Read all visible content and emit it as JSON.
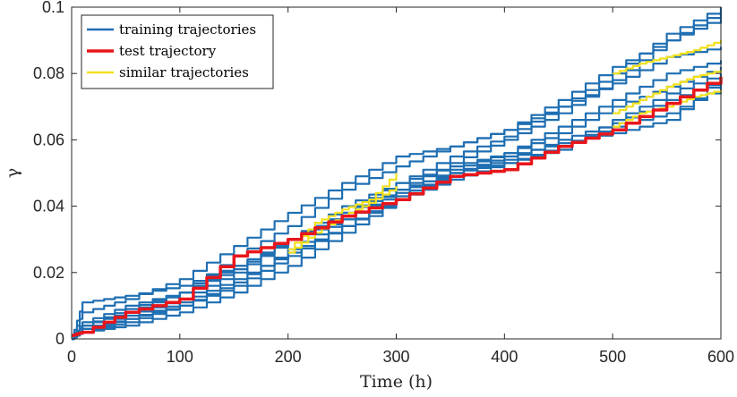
{
  "chart_data": {
    "type": "line",
    "xlabel": "Time (h)",
    "ylabel": "γ",
    "xlim": [
      0,
      600
    ],
    "ylim": [
      0,
      0.1
    ],
    "xticks": [
      0,
      100,
      200,
      300,
      400,
      500,
      600
    ],
    "xtick_labels": [
      "0",
      "100",
      "200",
      "300",
      "400",
      "500",
      "600"
    ],
    "yticks": [
      0,
      0.02,
      0.04,
      0.06,
      0.08,
      0.1
    ],
    "ytick_labels": [
      "0",
      "0.02",
      "0.04",
      "0.06",
      "0.08",
      "0.1"
    ],
    "grid": false,
    "legend_position": "top-left",
    "colors": {
      "training": "#1f6fb2",
      "test": "#e8161b",
      "similar": "#f2e01d"
    },
    "legend": [
      {
        "label": "training trajectories",
        "color": "#1f6fb2",
        "key": "training"
      },
      {
        "label": "test trajectory",
        "color": "#e8161b",
        "key": "test"
      },
      {
        "label": "similar trajectories",
        "color": "#f2e01d",
        "key": "similar"
      }
    ],
    "series": [
      {
        "group": "training",
        "x": [
          0,
          10,
          50,
          100,
          150,
          200,
          250,
          300,
          350,
          400,
          450,
          500,
          550,
          600
        ],
        "y": [
          0,
          0.011,
          0.013,
          0.016,
          0.022,
          0.03,
          0.038,
          0.047,
          0.055,
          0.061,
          0.07,
          0.08,
          0.092,
          0.1
        ]
      },
      {
        "group": "training",
        "x": [
          0,
          10,
          50,
          100,
          150,
          200,
          250,
          300,
          350,
          400,
          450,
          500,
          550,
          600
        ],
        "y": [
          0,
          0.005,
          0.01,
          0.014,
          0.022,
          0.03,
          0.036,
          0.045,
          0.053,
          0.06,
          0.068,
          0.078,
          0.09,
          0.099
        ]
      },
      {
        "group": "training",
        "x": [
          0,
          10,
          50,
          100,
          150,
          200,
          250,
          300,
          350,
          400,
          450,
          500,
          550,
          600
        ],
        "y": [
          0,
          0.008,
          0.012,
          0.018,
          0.028,
          0.038,
          0.047,
          0.055,
          0.058,
          0.063,
          0.072,
          0.082,
          0.09,
          0.097
        ]
      },
      {
        "group": "training",
        "x": [
          0,
          10,
          50,
          100,
          150,
          200,
          250,
          300,
          350,
          400,
          450,
          500,
          550,
          600
        ],
        "y": [
          0,
          0.004,
          0.009,
          0.014,
          0.025,
          0.034,
          0.045,
          0.052,
          0.058,
          0.063,
          0.07,
          0.077,
          0.085,
          0.088
        ]
      },
      {
        "group": "training",
        "x": [
          0,
          10,
          50,
          100,
          150,
          200,
          250,
          300,
          350,
          400,
          450,
          500,
          550,
          600
        ],
        "y": [
          0,
          0.003,
          0.007,
          0.012,
          0.02,
          0.03,
          0.04,
          0.047,
          0.052,
          0.056,
          0.064,
          0.072,
          0.08,
          0.084
        ]
      },
      {
        "group": "training",
        "x": [
          0,
          10,
          50,
          100,
          150,
          200,
          250,
          300,
          350,
          400,
          450,
          500,
          550,
          600
        ],
        "y": [
          0,
          0.002,
          0.006,
          0.01,
          0.016,
          0.025,
          0.034,
          0.043,
          0.05,
          0.055,
          0.059,
          0.062,
          0.066,
          0.079
        ]
      },
      {
        "group": "training",
        "x": [
          0,
          10,
          50,
          100,
          150,
          200,
          250,
          300,
          350,
          400,
          450,
          500,
          550,
          600
        ],
        "y": [
          0,
          0.002,
          0.004,
          0.008,
          0.014,
          0.022,
          0.032,
          0.042,
          0.05,
          0.053,
          0.057,
          0.066,
          0.074,
          0.08
        ]
      },
      {
        "group": "training",
        "x": [
          0,
          10,
          50,
          100,
          150,
          200,
          250,
          300,
          350,
          400,
          450,
          500,
          550,
          600
        ],
        "y": [
          0,
          0.004,
          0.008,
          0.014,
          0.021,
          0.03,
          0.038,
          0.045,
          0.05,
          0.054,
          0.06,
          0.065,
          0.072,
          0.078
        ]
      },
      {
        "group": "training",
        "x": [
          0,
          10,
          50,
          100,
          150,
          200,
          250,
          300,
          350,
          400,
          450,
          500,
          550,
          600
        ],
        "y": [
          0,
          0.003,
          0.006,
          0.011,
          0.018,
          0.026,
          0.034,
          0.042,
          0.048,
          0.053,
          0.058,
          0.064,
          0.068,
          0.076
        ]
      },
      {
        "group": "training",
        "x": [
          0,
          10,
          50,
          100,
          150,
          200,
          250,
          300,
          350,
          400,
          450,
          500,
          550,
          600
        ],
        "y": [
          0,
          0.002,
          0.005,
          0.01,
          0.017,
          0.027,
          0.036,
          0.044,
          0.051,
          0.056,
          0.062,
          0.07,
          0.076,
          0.082
        ]
      },
      {
        "group": "test",
        "x": [
          0,
          10,
          50,
          100,
          150,
          200,
          250,
          300,
          350,
          400,
          450,
          500,
          550,
          600
        ],
        "y": [
          0.001,
          0.002,
          0.008,
          0.012,
          0.025,
          0.03,
          0.037,
          0.042,
          0.049,
          0.051,
          0.058,
          0.063,
          0.071,
          0.079
        ]
      },
      {
        "group": "similar",
        "x": [
          200,
          225,
          250,
          275,
          300
        ],
        "y": [
          0.027,
          0.035,
          0.039,
          0.042,
          0.05
        ]
      },
      {
        "group": "similar",
        "x": [
          200,
          225,
          250,
          275,
          300
        ],
        "y": [
          0.026,
          0.032,
          0.037,
          0.041,
          0.046
        ]
      },
      {
        "group": "similar",
        "x": [
          500,
          525,
          550,
          575,
          600
        ],
        "y": [
          0.068,
          0.072,
          0.076,
          0.079,
          0.081
        ]
      },
      {
        "group": "similar",
        "x": [
          500,
          525,
          550,
          575,
          600
        ],
        "y": [
          0.08,
          0.083,
          0.085,
          0.087,
          0.09
        ]
      },
      {
        "group": "similar",
        "x": [
          500,
          525,
          550,
          575,
          600
        ],
        "y": [
          0.064,
          0.068,
          0.07,
          0.073,
          0.075
        ]
      }
    ]
  }
}
